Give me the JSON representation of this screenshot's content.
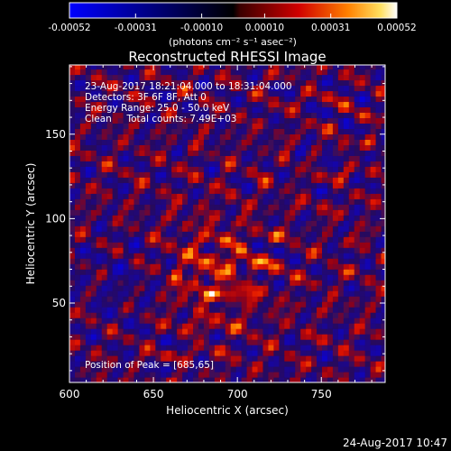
{
  "chart_data": {
    "type": "heatmap",
    "title": "Reconstructed RHESSI Image",
    "xlabel": "Heliocentric X (arcsec)",
    "ylabel": "Heliocentric Y (arcsec)",
    "xlim": [
      600,
      788
    ],
    "ylim": [
      3,
      191
    ],
    "x_ticks": [
      "600",
      "650",
      "700",
      "750"
    ],
    "y_ticks": [
      "50",
      "100",
      "150"
    ],
    "colorbar": {
      "range": [
        -0.00052,
        0.00052
      ],
      "ticks": [
        "-0.00052",
        "-0.00031",
        "-0.00010",
        "0.00010",
        "0.00031",
        "0.00052"
      ],
      "units": "(photons cm⁻² s⁻¹ asec⁻²)"
    },
    "peak": [
      685,
      65
    ],
    "annotations": {
      "line1": "23-Aug-2017 18:21:04.000 to 18:31:04.000",
      "line2": "Detectors: 3F 6F 8F, Att 0",
      "line3": "Energy Range: 25.0 - 50.0 keV",
      "line4": "Clean     Total counts: 7.49E+03",
      "peak_text": "Position of Peak = [685,65]"
    },
    "colors": {
      "negative": "#0000ff",
      "zero": "#000000",
      "mid": "#ff0000",
      "positive": "#ffffff"
    }
  },
  "footer_timestamp": "24-Aug-2017 10:47"
}
